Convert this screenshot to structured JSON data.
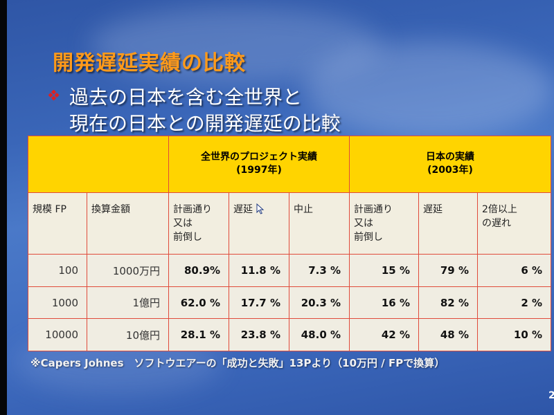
{
  "slide": {
    "title": "開発遅延実績の比較",
    "bullet_lines": [
      "過去の日本を含む全世界と",
      "現在の日本との開発遅延の比較"
    ],
    "table": {
      "group_world": [
        "全世界のプロジェクト実績",
        "(1997年)"
      ],
      "group_japan": [
        "日本の実績",
        "(2003年)"
      ],
      "headers": {
        "scale": "規模 FP",
        "amount": "換算金額",
        "world_on_plan": [
          "計画通り",
          "又は",
          "前倒し"
        ],
        "world_delay": "遅延",
        "world_cancel": "中止",
        "jp_on_plan": [
          "計画通り",
          "又は",
          "前倒し"
        ],
        "jp_delay": "遅延",
        "jp_double": [
          "2倍以上",
          "の遅れ"
        ]
      },
      "rows": [
        [
          "100",
          "1000万円",
          "80.9%",
          "11.8 %",
          "7.3 %",
          "15 %",
          "79 %",
          "6 %"
        ],
        [
          "1000",
          "1億円",
          "62.0 %",
          "17.7 %",
          "20.3 %",
          "16 %",
          "82 %",
          "2 %"
        ],
        [
          "10000",
          "10億円",
          "28.1 %",
          "23.8 %",
          "48.0 %",
          "42 %",
          "48 %",
          "10 %"
        ]
      ]
    },
    "footnote": "※Capers Johnes　ソフトウエアーの「成功と失敗」13Pより（10万円 / FPで換算）",
    "page_number": "2"
  },
  "colors": {
    "title": "#ff9a1a",
    "header_fill": "#ffd400",
    "cell_fill": "#f0ede2",
    "border": "#e04a3a",
    "bullet": "#e02020"
  },
  "icons": {
    "bullet": "diamond-bullet-icon",
    "cursor": "mouse-pointer-icon"
  }
}
